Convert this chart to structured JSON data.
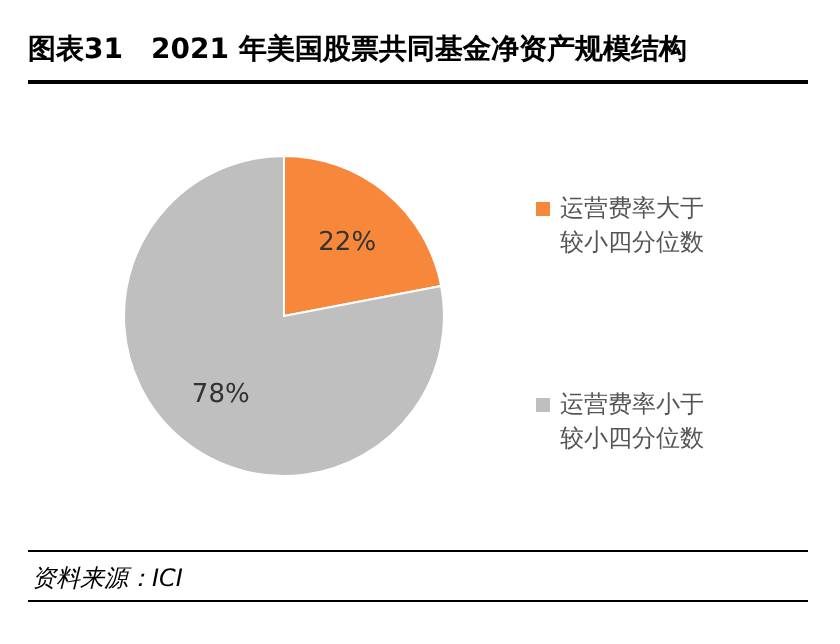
{
  "chart_data": {
    "type": "pie",
    "title": "图表31　2021 年美国股票共同基金净资产规模结构",
    "categories": [
      "运营费率大于较小四分位数",
      "运营费率小于较小四分位数"
    ],
    "values": [
      22,
      78
    ],
    "colors": [
      "#f7883b",
      "#bfbfbf"
    ],
    "value_labels": [
      "22%",
      "78%"
    ],
    "legend": "right",
    "annotations": [
      "资料来源：ICI"
    ]
  }
}
